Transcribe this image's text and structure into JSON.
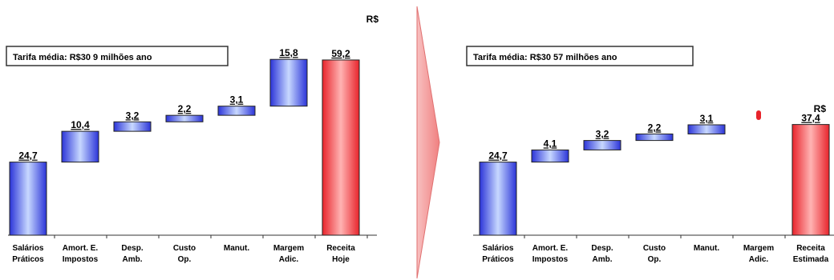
{
  "colors": {
    "blue_dark": "#2b34d8",
    "blue_light": "#c7d8ff",
    "red_dark": "#e8242b",
    "red_light": "#ffb3b3",
    "divider_arrow": "#f08080"
  },
  "chart_data": [
    {
      "type": "bar",
      "subtype": "waterfall",
      "title": "Tarifa média: R$30 9 milhões ano",
      "unit_label": "R$",
      "categories": [
        "Salários Práticos",
        "Amort. E. Impostos",
        "Desp. Amb.",
        "Custo Op.",
        "Manut.",
        "Margem Adic.",
        "Receita Hoje"
      ],
      "values": [
        24.7,
        10.4,
        3.2,
        2.2,
        3.1,
        15.8,
        59.2
      ],
      "value_labels": [
        "24,7",
        "10,4",
        "3,2",
        "2,2",
        "3,1",
        "15,8",
        "59,2"
      ],
      "kinds": [
        "base",
        "step",
        "step",
        "step",
        "step",
        "step",
        "total"
      ],
      "ylim": [
        0,
        60
      ],
      "grid": false,
      "legend": "none"
    },
    {
      "type": "bar",
      "subtype": "waterfall",
      "title": "Tarifa média: R$30 57 milhões ano",
      "unit_label": "R$",
      "categories": [
        "Salários Práticos",
        "Amort. E. Impostos",
        "Desp. Amb.",
        "Custo Op.",
        "Manut.",
        "Margem Adic.",
        "Receita Estimada"
      ],
      "values": [
        24.7,
        4.1,
        3.2,
        2.2,
        3.1,
        0,
        37.4
      ],
      "value_labels": [
        "24,7",
        "4,1",
        "3,2",
        "2,2",
        "3,1",
        "0",
        "37,4"
      ],
      "kinds": [
        "base",
        "step",
        "step",
        "step",
        "step",
        "zero",
        "total"
      ],
      "ylim": [
        0,
        60
      ],
      "grid": false,
      "legend": "none"
    }
  ]
}
